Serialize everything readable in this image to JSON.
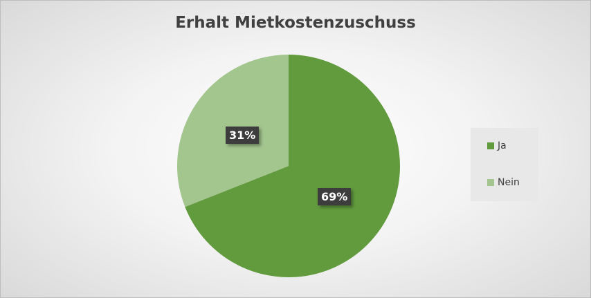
{
  "chart_data": {
    "type": "pie",
    "title": "Erhalt Mietkostenzuschuss",
    "categories": [
      "Ja",
      "Nein"
    ],
    "values": [
      69,
      31
    ],
    "data_labels": [
      "69%",
      "31%"
    ],
    "colors": [
      "#629b3e",
      "#a3c58e"
    ],
    "legend_position": "right"
  }
}
